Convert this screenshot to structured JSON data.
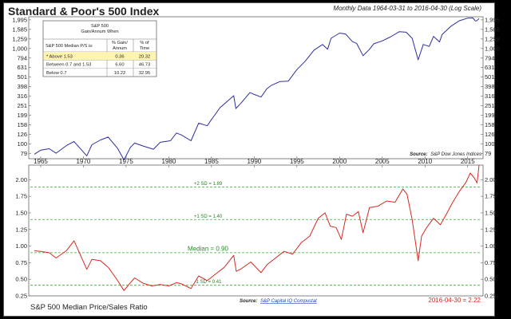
{
  "header": {
    "title": "Standard & Poor's 500 Index",
    "note": "Monthly Data 1964-03-31 to 2016-04-30 (Log Scale)"
  },
  "table": {
    "title_line1": "S&P 500",
    "title_line2": "Gain/Annum When",
    "col1_header": "S&P 500 Median P/S is:",
    "col2_header_line1": "% Gain/",
    "col2_header_line2": "Annum",
    "col3_header_line1": "% of",
    "col3_header_line2": "Time",
    "rows": [
      {
        "label": "* Above 1.53",
        "gain": "0.36",
        "time": "20.32"
      },
      {
        "label": "Between 0.7 and 1.53",
        "gain": "6.60",
        "time": "46.73"
      },
      {
        "label": "Below 0.7",
        "gain": "10.22",
        "time": "32.95"
      }
    ]
  },
  "top_source": {
    "label": "Source:",
    "text": "S&P Dow Jones Indices"
  },
  "bottom_source": {
    "label": "Source:",
    "text": "S&P Capital IQ Compustat"
  },
  "bottom_title": "S&P 500 Median Price/Sales Ratio",
  "bottom_latest": "2016-04-30 = 2.22",
  "colors": {
    "index_line": "#2b2fa0",
    "ratio_line": "#d42a22",
    "ref_line": "#3aa93a",
    "ref_text": "#2b8a2b",
    "highlight": "#fff3b0",
    "source_link": "#1a3fb0"
  },
  "chart_data": [
    {
      "type": "line",
      "title": "Standard & Poor's 500 Index",
      "scale": "log",
      "x_ticks": [
        "1965",
        "1970",
        "1975",
        "1980",
        "1985",
        "1990",
        "1995",
        "2000",
        "2005",
        "2010",
        "2015"
      ],
      "y_ticks": [
        79,
        100,
        126,
        158,
        199,
        251,
        316,
        398,
        501,
        631,
        794,
        1000,
        1259,
        1585,
        1995
      ],
      "y_tick_labels": [
        "79",
        "100",
        "126",
        "158",
        "199",
        "251",
        "316",
        "398",
        "501",
        "631",
        "794",
        "1,000",
        "1,259",
        "1,585",
        "1,995"
      ],
      "ylim": [
        70,
        2150
      ],
      "xlim": [
        1963.6,
        2016.8
      ],
      "series": [
        {
          "x": [
            1964.25,
            1965,
            1966,
            1966.8,
            1968,
            1968.9,
            1970.4,
            1971,
            1972,
            1972.9,
            1974,
            1974.75,
            1975.5,
            1976,
            1977,
            1978.2,
            1979,
            1980.2,
            1980.9,
            1981.5,
            1982.6,
            1983.5,
            1984.5,
            1985,
            1986,
            1987.6,
            1987.85,
            1988.5,
            1989.5,
            1990,
            1990.8,
            1991.5,
            1992,
            1993,
            1994,
            1995,
            1996,
            1997,
            1998,
            1998.6,
            1999,
            2000,
            2000.7,
            2001.5,
            2002,
            2002.75,
            2003.5,
            2004,
            2005,
            2006,
            2007,
            2007.8,
            2008.5,
            2009.2,
            2009.8,
            2010.5,
            2011,
            2011.7,
            2012,
            2013,
            2014,
            2015,
            2015.6,
            2015.9,
            2016.1,
            2016.33
          ],
          "y": [
            78,
            86,
            89,
            80,
            96,
            106,
            75,
            98,
            110,
            118,
            90,
            68,
            92,
            102,
            95,
            88,
            104,
            108,
            130,
            124,
            108,
            165,
            155,
            180,
            240,
            320,
            235,
            270,
            345,
            330,
            310,
            380,
            410,
            450,
            455,
            600,
            740,
            960,
            1100,
            980,
            1280,
            1450,
            1420,
            1180,
            1130,
            840,
            980,
            1120,
            1200,
            1330,
            1500,
            1480,
            1280,
            760,
            1100,
            1050,
            1340,
            1170,
            1400,
            1700,
            1950,
            2080,
            2090,
            1940,
            1960,
            2060
          ]
        }
      ]
    },
    {
      "type": "line",
      "title": "S&P 500 Median Price/Sales Ratio",
      "scale": "linear",
      "x_ticks": [
        "1965",
        "1970",
        "1975",
        "1980",
        "1985",
        "1990",
        "1995",
        "2000",
        "2005",
        "2010",
        "2015"
      ],
      "y_ticks": [
        0.25,
        0.5,
        0.75,
        1.0,
        1.25,
        1.5,
        1.75,
        2.0
      ],
      "y_tick_labels": [
        "0.25",
        "0.50",
        "0.75",
        "1.00",
        "1.25",
        "1.50",
        "1.75",
        "2.00"
      ],
      "ylim": [
        0.25,
        2.22
      ],
      "xlim": [
        1963.6,
        2016.8
      ],
      "reference_lines": [
        {
          "label": "+2 SD = 1.89",
          "value": 1.89
        },
        {
          "label": "+1 SD = 1.40",
          "value": 1.4
        },
        {
          "label": "Median = 0.90",
          "value": 0.9
        },
        {
          "label": "-1 SD = 0.41",
          "value": 0.41
        }
      ],
      "series": [
        {
          "x": [
            1964.25,
            1965,
            1966,
            1966.8,
            1968,
            1968.9,
            1970.4,
            1971,
            1972,
            1972.9,
            1973.8,
            1974.75,
            1975.5,
            1976,
            1977,
            1978,
            1979,
            1980,
            1980.9,
            1981.5,
            1982.6,
            1983.5,
            1984.5,
            1985.5,
            1986.5,
            1987.6,
            1987.9,
            1988.5,
            1989.6,
            1990.8,
            1991.5,
            1992.5,
            1993.5,
            1994.5,
            1995.5,
            1996.5,
            1997.5,
            1998.3,
            1998.9,
            1999.6,
            2000.2,
            2000.8,
            2001.5,
            2002.2,
            2002.75,
            2003.5,
            2004.5,
            2005.5,
            2006.5,
            2007.4,
            2007.9,
            2008.5,
            2009.2,
            2009.6,
            2010.2,
            2011,
            2011.8,
            2012.5,
            2013.2,
            2014,
            2014.8,
            2015.3,
            2015.8,
            2016.1,
            2016.33
          ],
          "y": [
            0.93,
            0.92,
            0.9,
            0.82,
            0.93,
            1.08,
            0.65,
            0.8,
            0.78,
            0.68,
            0.52,
            0.33,
            0.45,
            0.52,
            0.44,
            0.4,
            0.42,
            0.4,
            0.45,
            0.43,
            0.36,
            0.55,
            0.48,
            0.58,
            0.68,
            0.86,
            0.62,
            0.66,
            0.76,
            0.6,
            0.72,
            0.82,
            0.92,
            0.88,
            1.05,
            1.15,
            1.42,
            1.5,
            1.3,
            1.28,
            1.1,
            1.48,
            1.45,
            1.52,
            1.2,
            1.58,
            1.6,
            1.68,
            1.66,
            1.86,
            1.78,
            1.4,
            0.78,
            1.15,
            1.28,
            1.42,
            1.32,
            1.48,
            1.65,
            1.82,
            1.96,
            2.1,
            2.02,
            1.95,
            2.22
          ]
        }
      ]
    }
  ]
}
